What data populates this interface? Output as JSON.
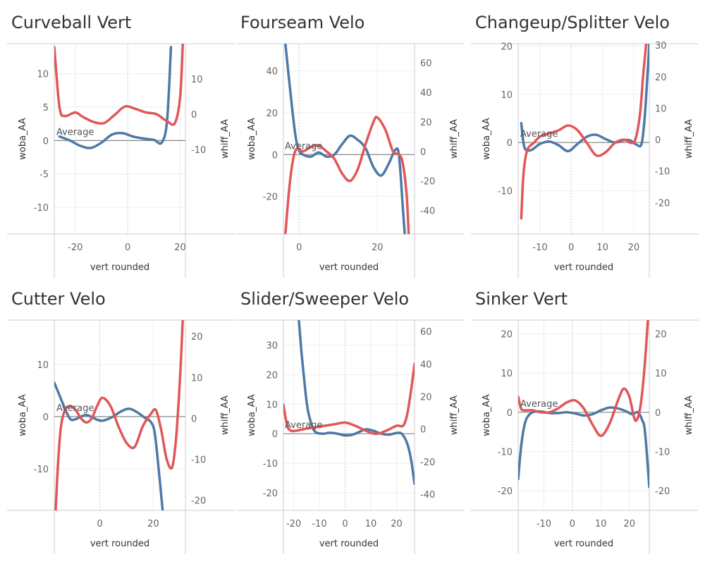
{
  "colors": {
    "woba": "#4e79a7",
    "whiff": "#e15759",
    "grid": "#eeeeee",
    "axis": "#cccccc",
    "zero": "#888888",
    "zero_dotted": "#c8c8c8"
  },
  "chart_data": [
    {
      "type": "line",
      "title": "Curveball Vert",
      "xlabel": "vert rounded",
      "ylabel_left": "woba_AA",
      "ylabel_right": "whiff_AA",
      "xlim": [
        -28,
        22
      ],
      "ylim_left": [
        -14,
        14.5
      ],
      "ylim_right": [
        -34,
        20
      ],
      "xticks": [
        -20,
        0,
        20
      ],
      "yticks_left": [
        -10,
        -5,
        0,
        5,
        10
      ],
      "yticks_right": [
        -10,
        0,
        10
      ],
      "reference_label": "Average",
      "series": [
        {
          "name": "woba_AA",
          "axis": "left",
          "x": [
            -26,
            -22,
            -18,
            -14,
            -10,
            -6,
            -2,
            2,
            6,
            10,
            13,
            15,
            16.5
          ],
          "y": [
            0.6,
            0,
            -0.8,
            -1.1,
            -0.3,
            0.9,
            1.1,
            0.6,
            0.3,
            0.1,
            -0.3,
            3,
            14
          ]
        },
        {
          "name": "whiff_AA",
          "axis": "right",
          "x": [
            -28,
            -26,
            -24,
            -20,
            -17,
            -13,
            -9,
            -5,
            -1,
            3,
            7,
            11,
            15,
            18,
            20,
            21
          ],
          "y": [
            19,
            2,
            -0.5,
            0.5,
            -0.8,
            -2.2,
            -2.5,
            -0.2,
            2.2,
            1.5,
            0.5,
            0,
            -2,
            -2.5,
            5,
            20
          ]
        }
      ]
    },
    {
      "type": "line",
      "title": "Fourseam Velo",
      "xlabel": "vert rounded",
      "ylabel_left": "woba_AA",
      "ylabel_right": "whiff_AA",
      "xlim": [
        -4,
        29.5
      ],
      "ylim_left": [
        -38,
        53
      ],
      "ylim_right": [
        -56,
        73
      ],
      "xticks": [
        0,
        20
      ],
      "yticks_left": [
        -20,
        0,
        20,
        40
      ],
      "yticks_right": [
        -40,
        -20,
        0,
        20,
        40,
        60
      ],
      "reference_label": "Average",
      "series": [
        {
          "name": "woba_AA",
          "axis": "left",
          "x": [
            -3.5,
            -2.5,
            -1,
            0,
            1,
            3,
            5,
            7,
            9,
            11,
            13,
            15,
            17,
            19,
            21,
            23,
            24.5,
            25.5,
            26.5,
            27
          ],
          "y": [
            53,
            35,
            10,
            2,
            0,
            -1,
            1,
            -1,
            0,
            5,
            9,
            7,
            3,
            -6,
            -10,
            -4,
            2,
            0,
            -25,
            -38
          ]
        },
        {
          "name": "whiff_AA",
          "axis": "right",
          "x": [
            -3.5,
            -2.5,
            -1.5,
            -0.5,
            1,
            3,
            5,
            7,
            9,
            11,
            13,
            15,
            17,
            19,
            20,
            22,
            24,
            25.5,
            26.5,
            27.5,
            28
          ],
          "y": [
            -56,
            -25,
            -5,
            2,
            0,
            3,
            4,
            0,
            -5,
            -15,
            -20,
            -12,
            5,
            20,
            23,
            15,
            0,
            -2,
            -8,
            -30,
            -56
          ]
        }
      ]
    },
    {
      "type": "line",
      "title": "Changeup/Splitter Velo",
      "xlabel": "vert rounded",
      "ylabel_left": "woba_AA",
      "ylabel_right": "whiff_AA",
      "xlim": [
        -17,
        25
      ],
      "ylim_left": [
        -19,
        20.5
      ],
      "ylim_right": [
        -30,
        30.5
      ],
      "xticks": [
        -10,
        0,
        10,
        20
      ],
      "yticks_left": [
        -10,
        0,
        10,
        20
      ],
      "yticks_right": [
        -20,
        -10,
        0,
        10,
        20,
        30
      ],
      "reference_label": "Average",
      "series": [
        {
          "name": "woba_AA",
          "axis": "left",
          "x": [
            -16,
            -15,
            -13,
            -10,
            -7,
            -4,
            -1,
            2,
            5,
            8,
            11,
            14,
            17,
            19,
            21,
            22.5,
            23.5,
            24.5,
            25
          ],
          "y": [
            4,
            -1,
            -1.6,
            -0.3,
            0.2,
            -0.6,
            -1.8,
            -0.3,
            1.2,
            1.6,
            0.7,
            0,
            0.5,
            0.4,
            -0.5,
            -0.3,
            5,
            15,
            20.5
          ]
        },
        {
          "name": "whiff_AA",
          "axis": "right",
          "x": [
            -16,
            -15.5,
            -15,
            -14,
            -12,
            -10,
            -7,
            -4,
            -1,
            2,
            5,
            8,
            11,
            14,
            17,
            19,
            20.5,
            22,
            23,
            24
          ],
          "y": [
            -25,
            -14,
            -8,
            -3,
            -1,
            1,
            2,
            3,
            4.5,
            3,
            -1,
            -5,
            -4,
            -1,
            0,
            -1,
            0,
            8,
            20,
            30.5
          ]
        }
      ]
    },
    {
      "type": "line",
      "title": "Cutter Velo",
      "xlabel": "vert rounded",
      "ylabel_left": "woba_AA",
      "ylabel_right": "whiff_AA",
      "xlim": [
        -17,
        32
      ],
      "ylim_left": [
        -18,
        18.5
      ],
      "ylim_right": [
        -22.5,
        24
      ],
      "xticks": [
        0,
        20
      ],
      "yticks_left": [
        -10,
        0,
        10
      ],
      "yticks_right": [
        -20,
        -10,
        0,
        10,
        20
      ],
      "reference_label": "Average",
      "series": [
        {
          "name": "woba_AA",
          "axis": "left",
          "x": [
            -17,
            -15,
            -13,
            -11,
            -9,
            -7,
            -5,
            -3,
            -1,
            1,
            3,
            5,
            8,
            11,
            14,
            17,
            19,
            20.5,
            22,
            23.5
          ],
          "y": [
            6.5,
            4,
            1.5,
            -0.5,
            -0.5,
            0,
            0.3,
            -0.1,
            -0.6,
            -0.8,
            -0.5,
            0,
            1,
            1.5,
            0.8,
            -0.3,
            -1,
            -3,
            -10,
            -18
          ]
        },
        {
          "name": "whiff_AA",
          "axis": "right",
          "x": [
            -16.5,
            -15.5,
            -14.5,
            -13,
            -11,
            -9,
            -7,
            -5,
            -3,
            -1,
            1,
            4,
            7,
            10,
            13,
            16,
            19,
            21,
            23,
            25,
            27,
            28.5,
            30,
            31
          ],
          "y": [
            -22.5,
            -10,
            -2,
            2,
            3,
            2,
            0,
            -1,
            0,
            3,
            5,
            3,
            -2,
            -6,
            -7,
            -2,
            1,
            2,
            -3,
            -10,
            -12,
            -5,
            10,
            24
          ]
        }
      ]
    },
    {
      "type": "line",
      "title": "Slider/Sweeper Velo",
      "xlabel": "vert rounded",
      "ylabel_left": "woba_AA",
      "ylabel_right": "whiff_AA",
      "xlim": [
        -24,
        27
      ],
      "ylim_left": [
        -26,
        38.5
      ],
      "ylim_right": [
        -50,
        67
      ],
      "xticks": [
        -20,
        -10,
        0,
        10,
        20
      ],
      "yticks_left": [
        -20,
        -10,
        0,
        10,
        20,
        30
      ],
      "yticks_right": [
        -40,
        -20,
        0,
        20,
        40,
        60
      ],
      "reference_label": "Average",
      "series": [
        {
          "name": "woba_AA",
          "axis": "left",
          "x": [
            -18,
            -17,
            -16,
            -15,
            -14,
            -12,
            -9,
            -6,
            -3,
            0,
            3,
            6,
            8,
            11,
            14,
            17,
            20,
            22,
            24,
            25.5,
            27
          ],
          "y": [
            38.5,
            28,
            19,
            11,
            6,
            1,
            0,
            0.3,
            0,
            -0.6,
            -0.3,
            0.8,
            1.5,
            1,
            0,
            -0.3,
            0.2,
            0,
            -3,
            -8,
            -17
          ]
        },
        {
          "name": "whiff_AA",
          "axis": "right",
          "x": [
            -24,
            -22.5,
            -21,
            -19,
            -16,
            -12,
            -8,
            -4,
            0,
            4,
            8,
            12,
            16,
            20,
            22.5,
            24,
            25.5,
            27
          ],
          "y": [
            15,
            2,
            -1,
            -1,
            0,
            1,
            2,
            3,
            4,
            2,
            -1,
            -3,
            -1,
            2,
            2,
            8,
            22,
            40
          ]
        }
      ]
    },
    {
      "type": "line",
      "title": "Sinker Vert",
      "xlabel": "vert rounded",
      "ylabel_left": "woba_AA",
      "ylabel_right": "whiff_AA",
      "xlim": [
        -19,
        27
      ],
      "ylim_left": [
        -25,
        23.5
      ],
      "ylim_right": [
        -25,
        23.5
      ],
      "xticks": [
        -10,
        0,
        10,
        20
      ],
      "yticks_left": [
        -20,
        -10,
        0,
        10,
        20
      ],
      "yticks_right": [
        -20,
        -10,
        0,
        10,
        20
      ],
      "reference_label": "Average",
      "series": [
        {
          "name": "woba_AA",
          "axis": "left",
          "x": [
            -19,
            -18,
            -17,
            -16,
            -14,
            -11,
            -8,
            -5,
            -2,
            1,
            4,
            7,
            10,
            13,
            16,
            19,
            21,
            23,
            24.5,
            25.5,
            27
          ],
          "y": [
            -17,
            -9,
            -4,
            -1.5,
            0,
            0.2,
            -0.2,
            -0.2,
            0,
            -0.3,
            -0.8,
            -0.5,
            0.5,
            1.2,
            1.0,
            0.2,
            -0.5,
            0,
            -2,
            -5,
            -19
          ]
        },
        {
          "name": "whiff_AA",
          "axis": "right",
          "x": [
            -19,
            -18,
            -17,
            -14,
            -11,
            -8,
            -5,
            -2,
            1,
            4,
            7,
            10,
            13,
            16,
            18,
            20,
            22,
            23.5,
            24.5,
            25.5,
            26.5
          ],
          "y": [
            4,
            1,
            0.5,
            0.5,
            0,
            0,
            1,
            2.5,
            3,
            1,
            -3,
            -6,
            -3,
            3,
            6,
            4,
            -2,
            0,
            5,
            13,
            23.5
          ]
        }
      ]
    }
  ]
}
